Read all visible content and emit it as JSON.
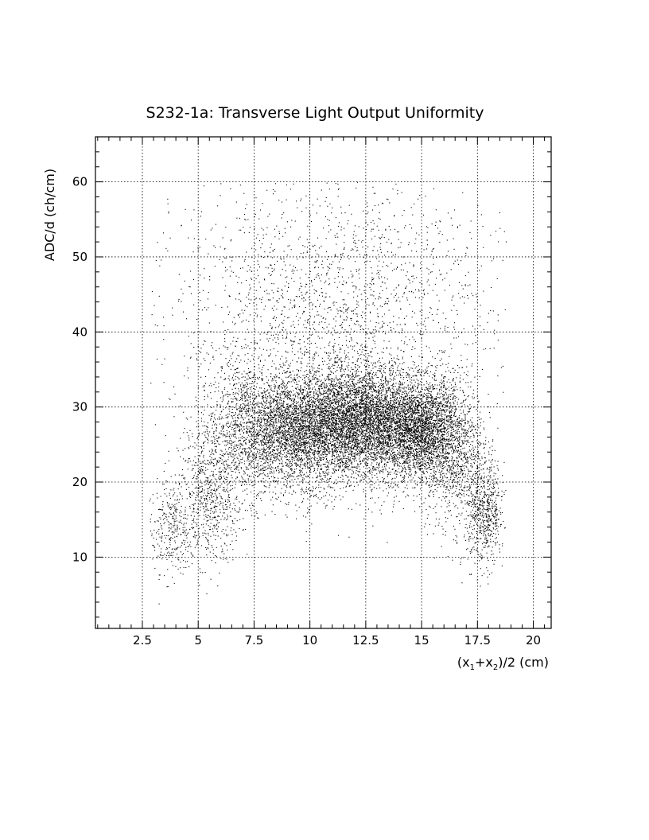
{
  "chart_data": {
    "type": "scatter",
    "title": "S232-1a: Transverse Light Output Uniformity",
    "xlabel": "(x1+x2)/2 (cm)",
    "ylabel": "ADC/d (ch/cm)",
    "xlim": [
      0.4,
      20.8
    ],
    "ylim": [
      0.5,
      66
    ],
    "x_ticks": [
      {
        "value": 2.5,
        "label": "2.5"
      },
      {
        "value": 5,
        "label": "5"
      },
      {
        "value": 7.5,
        "label": "7.5"
      },
      {
        "value": 10,
        "label": "10"
      },
      {
        "value": 12.5,
        "label": "12.5"
      },
      {
        "value": 15,
        "label": "15"
      },
      {
        "value": 17.5,
        "label": "17.5"
      },
      {
        "value": 20,
        "label": "20"
      }
    ],
    "y_ticks": [
      {
        "value": 10,
        "label": "10"
      },
      {
        "value": 20,
        "label": "20"
      },
      {
        "value": 30,
        "label": "30"
      },
      {
        "value": 40,
        "label": "40"
      },
      {
        "value": 50,
        "label": "50"
      },
      {
        "value": 60,
        "label": "60"
      }
    ],
    "grid": true,
    "point_color": "#000000",
    "background": "#ffffff",
    "density_clusters": [
      {
        "x": 3.8,
        "y": 14,
        "sx": 0.55,
        "sy": 3.0,
        "n": 320
      },
      {
        "x": 5.5,
        "y": 18,
        "sx": 0.7,
        "sy": 4.5,
        "n": 650
      },
      {
        "x": 7.2,
        "y": 27,
        "sx": 1.1,
        "sy": 4.5,
        "n": 1400
      },
      {
        "x": 9.3,
        "y": 27,
        "sx": 1.0,
        "sy": 3.5,
        "n": 2200
      },
      {
        "x": 11.3,
        "y": 28,
        "sx": 1.0,
        "sy": 3.6,
        "n": 2600
      },
      {
        "x": 13.1,
        "y": 28,
        "sx": 1.0,
        "sy": 3.6,
        "n": 2600
      },
      {
        "x": 14.9,
        "y": 27,
        "sx": 0.8,
        "sy": 3.2,
        "n": 2200
      },
      {
        "x": 16.3,
        "y": 25,
        "sx": 0.7,
        "sy": 5.0,
        "n": 1200
      },
      {
        "x": 17.8,
        "y": 16,
        "sx": 0.45,
        "sy": 3.5,
        "n": 700
      },
      {
        "x": 11.0,
        "y": 40,
        "sx": 3.5,
        "sy": 8.0,
        "n": 1700
      },
      {
        "x": 11.0,
        "y": 51,
        "sx": 4.5,
        "sy": 5.5,
        "n": 450
      },
      {
        "x": 10.5,
        "y": 19,
        "sx": 2.0,
        "sy": 2.5,
        "n": 150
      }
    ],
    "x_range_data": [
      2.8,
      18.8
    ],
    "y_range_data": [
      2,
      60
    ]
  }
}
